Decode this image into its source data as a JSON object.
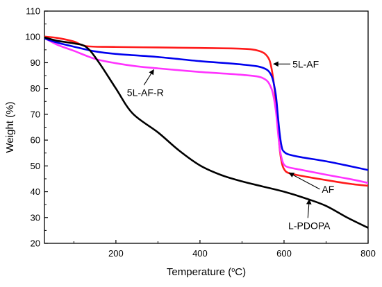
{
  "chart_data": {
    "type": "line",
    "title": "",
    "xlabel_prefix": "Temperature (",
    "xlabel_degree": "o",
    "xlabel_suffix": "C)",
    "ylabel": "Weight (%)",
    "xlim": [
      30,
      800
    ],
    "ylim": [
      20,
      110
    ],
    "xticks": [
      200,
      400,
      600,
      800
    ],
    "yticks": [
      20,
      30,
      40,
      50,
      60,
      70,
      80,
      90,
      100,
      110
    ],
    "grid": false,
    "legend": "none",
    "series": [
      {
        "name": "5L-AF",
        "color": "#ff1a1a",
        "x": [
          30,
          60,
          100,
          130,
          200,
          300,
          400,
          500,
          540,
          560,
          570,
          580,
          585,
          590,
          595,
          600,
          610,
          640,
          700,
          760,
          800
        ],
        "y": [
          100.1,
          99.6,
          98.2,
          96.4,
          96.1,
          95.9,
          95.7,
          95.4,
          94.6,
          92.5,
          88.0,
          76.0,
          66.0,
          56.0,
          51.0,
          48.8,
          47.3,
          46.2,
          44.5,
          43.0,
          42.3
        ]
      },
      {
        "name": "5L-AF-R",
        "color": "#ff33ff",
        "x": [
          30,
          60,
          100,
          150,
          200,
          250,
          300,
          400,
          500,
          550,
          570,
          580,
          585,
          590,
          595,
          600,
          610,
          640,
          700,
          760,
          800
        ],
        "y": [
          99.6,
          97.0,
          94.6,
          91.5,
          89.8,
          88.6,
          87.8,
          86.4,
          85.3,
          84.0,
          80.0,
          72.0,
          64.0,
          56.5,
          52.5,
          50.5,
          49.5,
          48.5,
          46.6,
          44.8,
          43.4
        ]
      },
      {
        "name": "AF",
        "color": "#0000ee",
        "x": [
          30,
          60,
          100,
          150,
          200,
          300,
          400,
          500,
          550,
          570,
          580,
          585,
          590,
          595,
          600,
          610,
          640,
          700,
          760,
          800
        ],
        "y": [
          99.4,
          97.8,
          96.2,
          94.4,
          93.4,
          92.2,
          90.6,
          89.3,
          88.0,
          85.0,
          78.0,
          70.0,
          62.0,
          57.0,
          55.5,
          54.5,
          53.4,
          51.8,
          49.8,
          48.4
        ]
      },
      {
        "name": "L-PDOPA",
        "color": "#000000",
        "x": [
          30,
          60,
          100,
          130,
          160,
          200,
          240,
          300,
          350,
          400,
          450,
          500,
          550,
          600,
          650,
          700,
          750,
          800
        ],
        "y": [
          99.8,
          98.5,
          97.5,
          96.0,
          90.0,
          80.0,
          70.3,
          63.0,
          56.0,
          50.2,
          46.5,
          44.0,
          42.0,
          40.0,
          37.5,
          34.5,
          30.0,
          26.0
        ]
      }
    ],
    "annotations": [
      {
        "text": "5L-AF",
        "series": "5L-AF",
        "at_x": 575,
        "at_y": 89.5,
        "label_x": 620,
        "label_y": 89.5
      },
      {
        "text": "5L-AF-R",
        "series": "5L-AF-R",
        "at_x": 290,
        "at_y": 87.3,
        "label_x": 270,
        "label_y": 80.8
      },
      {
        "text": "AF",
        "series": "AF",
        "at_x": 612,
        "at_y": 47.3,
        "label_x": 690,
        "label_y": 41.0
      },
      {
        "text": "L-PDOPA",
        "series": "L-PDOPA",
        "at_x": 660,
        "at_y": 37.0,
        "label_x": 660,
        "label_y": 29.3
      }
    ]
  }
}
